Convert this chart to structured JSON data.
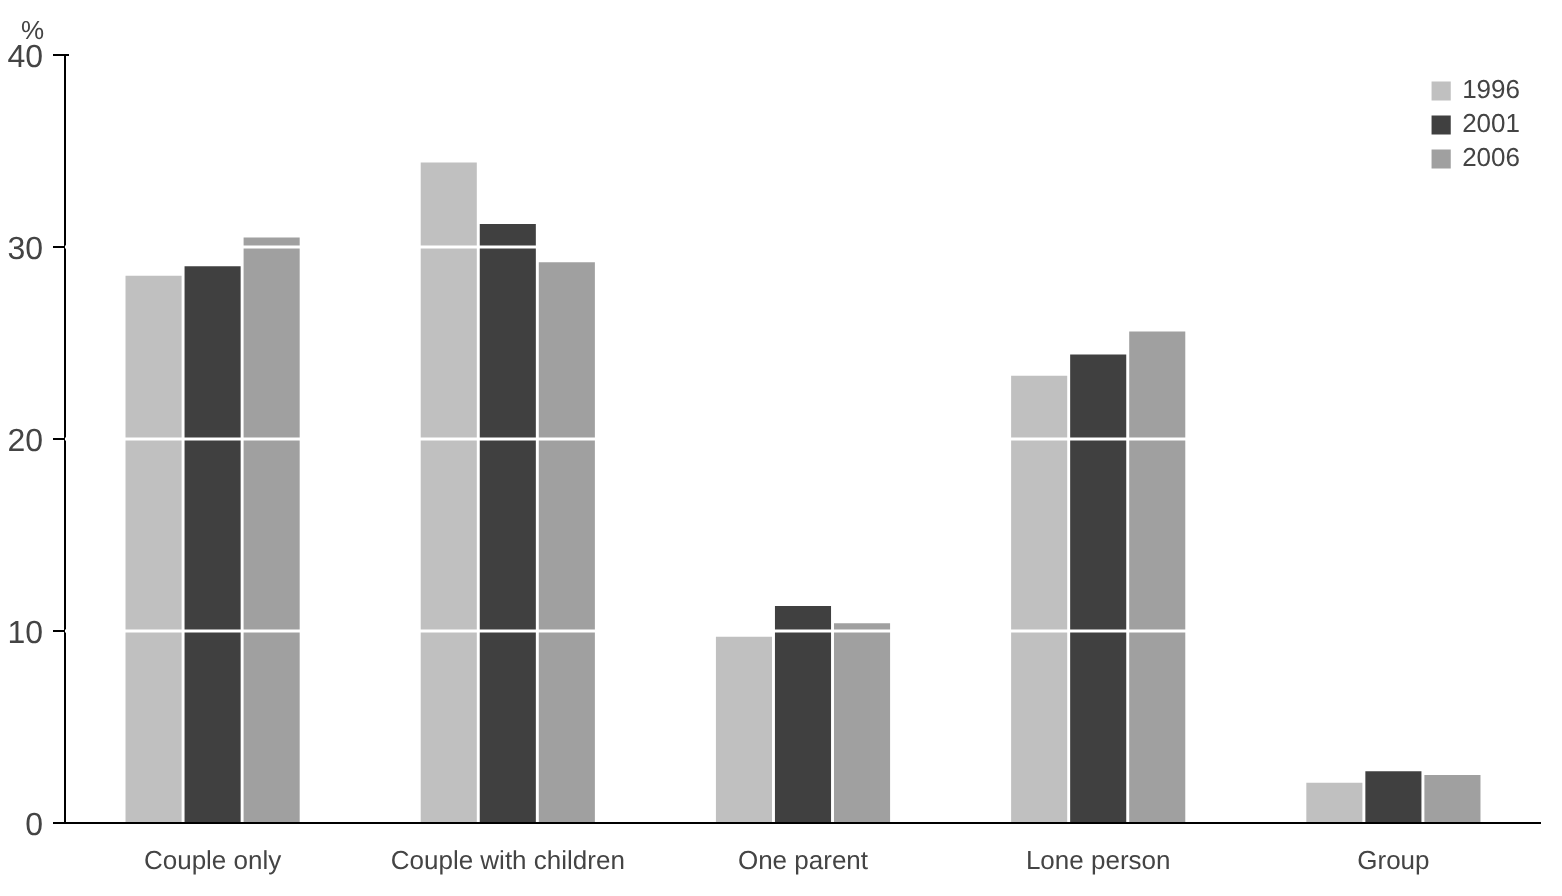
{
  "chart_data": {
    "type": "bar",
    "ylabel": "%",
    "categories": [
      "Couple only",
      "Couple with children",
      "One parent",
      "Lone person",
      "Group"
    ],
    "series": [
      {
        "name": "1996",
        "color": "#c0c0c0",
        "values": [
          28.5,
          34.4,
          9.7,
          23.3,
          2.1
        ]
      },
      {
        "name": "2001",
        "color": "#404040",
        "values": [
          29.0,
          31.2,
          11.3,
          24.4,
          2.7
        ]
      },
      {
        "name": "2006",
        "color": "#a0a0a0",
        "values": [
          30.5,
          29.2,
          10.4,
          25.6,
          2.5
        ]
      }
    ],
    "ylim": [
      0,
      40
    ],
    "yticks": [
      0,
      10,
      20,
      30,
      40
    ],
    "grid": "y",
    "legend": "top right"
  }
}
